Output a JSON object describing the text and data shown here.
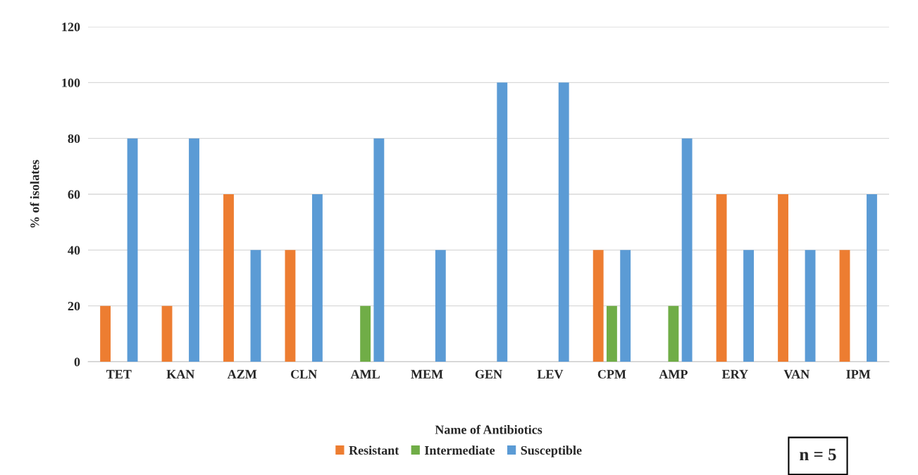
{
  "chart_data": {
    "type": "bar",
    "xlabel": "Name of Antibiotics",
    "ylabel": "% of isolates",
    "categories": [
      "TET",
      "KAN",
      "AZM",
      "CLN",
      "AML",
      "MEM",
      "GEN",
      "LEV",
      "CPM",
      "AMP",
      "ERY",
      "VAN",
      "IPM"
    ],
    "series": [
      {
        "name": "Resistant",
        "color": "#ed7d31",
        "values": [
          20,
          20,
          60,
          40,
          null,
          null,
          null,
          null,
          40,
          null,
          60,
          60,
          40
        ]
      },
      {
        "name": "Intermediate",
        "color": "#70ad47",
        "values": [
          null,
          null,
          null,
          null,
          20,
          null,
          null,
          null,
          20,
          20,
          null,
          null,
          null
        ]
      },
      {
        "name": "Susceptible",
        "color": "#5b9bd5",
        "values": [
          80,
          80,
          40,
          60,
          80,
          40,
          100,
          100,
          40,
          80,
          40,
          40,
          60
        ]
      }
    ],
    "ylim": [
      0,
      120
    ],
    "yticks": [
      0,
      20,
      40,
      60,
      80,
      100,
      120
    ],
    "grid": "y",
    "legend": "bottom",
    "annotations": [
      "n = 5"
    ]
  }
}
